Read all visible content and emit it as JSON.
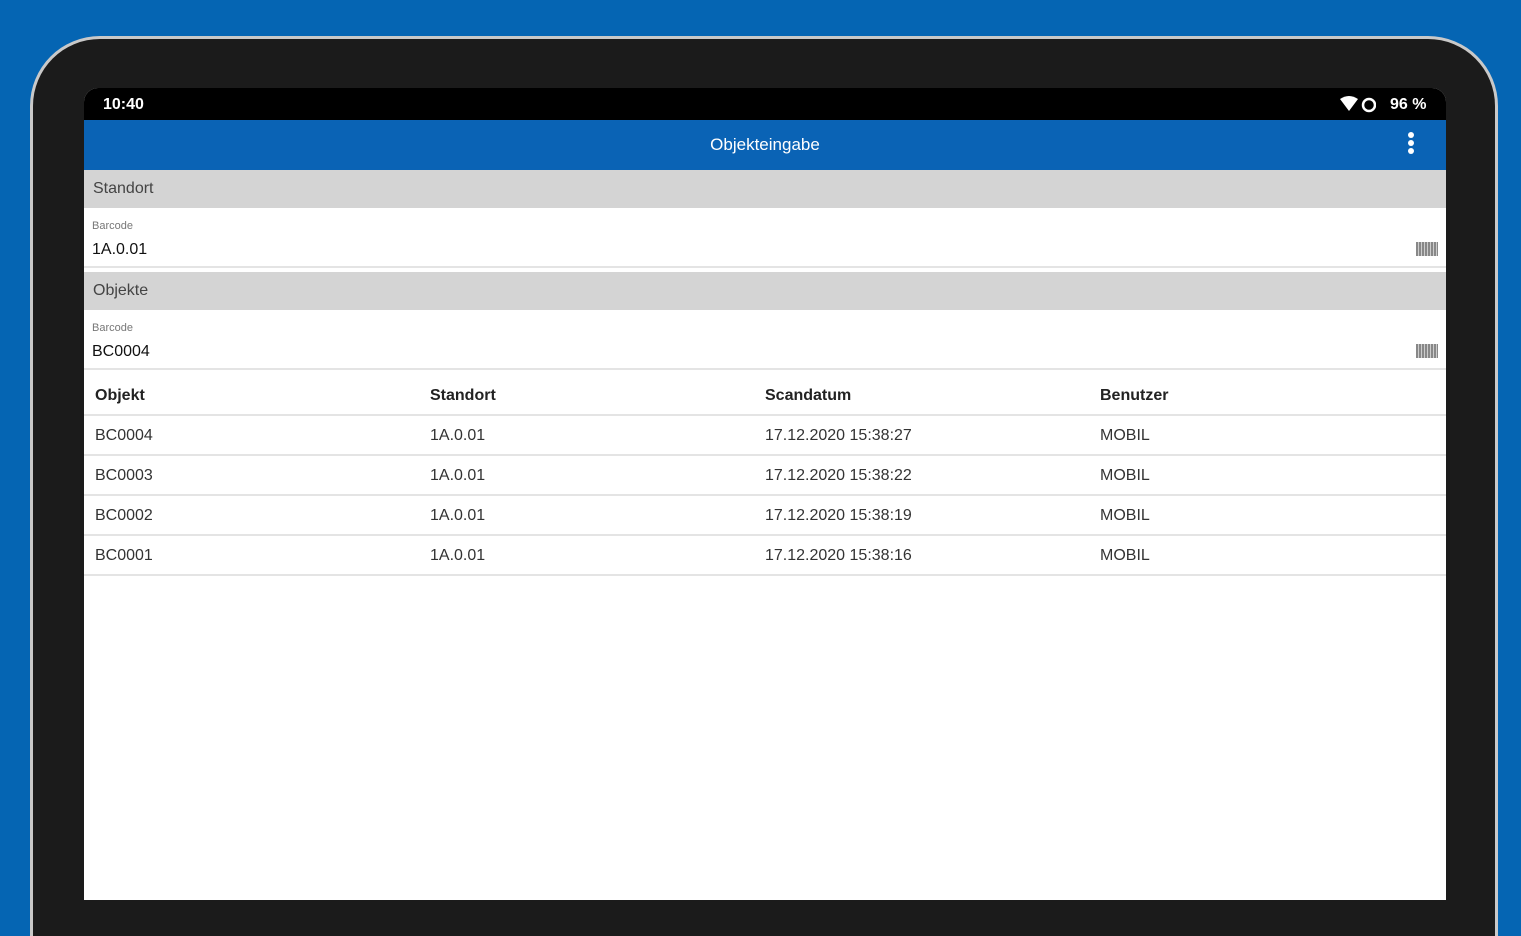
{
  "status_bar": {
    "time": "10:40",
    "battery": "96 %"
  },
  "app_bar": {
    "title": "Objekteingabe"
  },
  "sections": [
    {
      "title": "Standort",
      "field_label": "Barcode",
      "field_value": "1A.0.01"
    },
    {
      "title": "Objekte",
      "field_label": "Barcode",
      "field_value": "BC0004"
    }
  ],
  "table": {
    "headers": [
      "Objekt",
      "Standort",
      "Scandatum",
      "Benutzer"
    ],
    "rows": [
      [
        "BC0004",
        "1A.0.01",
        "17.12.2020 15:38:27",
        "MOBIL"
      ],
      [
        "BC0003",
        "1A.0.01",
        "17.12.2020 15:38:22",
        "MOBIL"
      ],
      [
        "BC0002",
        "1A.0.01",
        "17.12.2020 15:38:19",
        "MOBIL"
      ],
      [
        "BC0001",
        "1A.0.01",
        "17.12.2020 15:38:16",
        "MOBIL"
      ]
    ]
  }
}
